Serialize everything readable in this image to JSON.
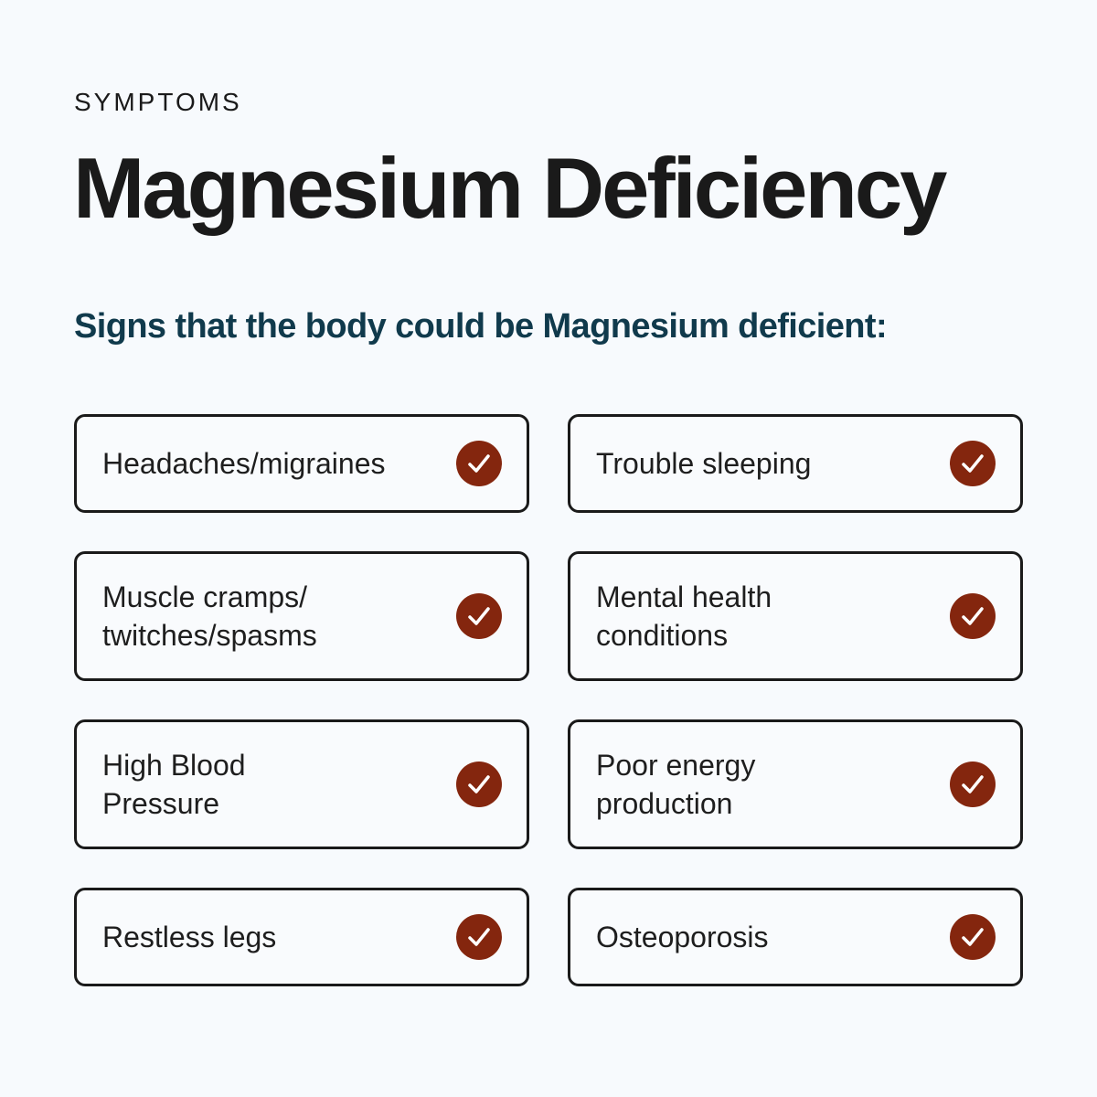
{
  "eyebrow": "SYMPTOMS",
  "title": "Magnesium Deficiency",
  "subtitle": "Signs that the body could be Magnesium deficient:",
  "colors": {
    "background": "#f7fafd",
    "accent": "#84260e",
    "subtitle": "#103a4c",
    "text": "#1a1a1a"
  },
  "check_icon": "check-circle-icon",
  "symptoms": [
    {
      "label": "Headaches/migraines"
    },
    {
      "label": "Trouble sleeping"
    },
    {
      "label": "Muscle cramps/ twitches/spasms"
    },
    {
      "label": "Mental health conditions"
    },
    {
      "label": "High Blood Pressure"
    },
    {
      "label": "Poor energy production"
    },
    {
      "label": "Restless legs"
    },
    {
      "label": "Osteoporosis"
    }
  ]
}
